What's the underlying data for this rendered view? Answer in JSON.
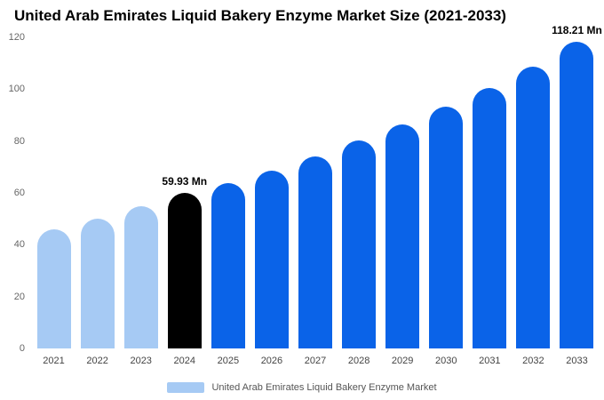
{
  "title": "United Arab Emirates Liquid Bakery Enzyme Market Size (2021-2033)",
  "legend": {
    "label": "United Arab Emirates Liquid Bakery Enzyme Market",
    "swatch_color": "#A6CAF4"
  },
  "colors": {
    "historical": "#A6CAF4",
    "base_year": "#000000",
    "forecast": "#0A63E8"
  },
  "chart_data": {
    "type": "bar",
    "title": "United Arab Emirates Liquid Bakery Enzyme Market Size (2021-2033)",
    "xlabel": "",
    "ylabel": "",
    "ylim": [
      0,
      120
    ],
    "yticks": [
      0,
      20,
      40,
      60,
      80,
      100,
      120
    ],
    "grid": false,
    "legend_position": "bottom",
    "unit": "Mn",
    "categories": [
      "2021",
      "2022",
      "2023",
      "2024",
      "2025",
      "2026",
      "2027",
      "2028",
      "2029",
      "2030",
      "2031",
      "2032",
      "2033"
    ],
    "bars": [
      {
        "year": "2021",
        "value": 46.0,
        "color": "historical",
        "label": ""
      },
      {
        "year": "2022",
        "value": 50.2,
        "color": "historical",
        "label": ""
      },
      {
        "year": "2023",
        "value": 54.7,
        "color": "historical",
        "label": ""
      },
      {
        "year": "2024",
        "value": 59.93,
        "color": "base_year",
        "label": "59.93 Mn"
      },
      {
        "year": "2025",
        "value": 63.8,
        "color": "forecast",
        "label": ""
      },
      {
        "year": "2026",
        "value": 68.6,
        "color": "forecast",
        "label": ""
      },
      {
        "year": "2027",
        "value": 74.0,
        "color": "forecast",
        "label": ""
      },
      {
        "year": "2028",
        "value": 80.2,
        "color": "forecast",
        "label": ""
      },
      {
        "year": "2029",
        "value": 86.3,
        "color": "forecast",
        "label": ""
      },
      {
        "year": "2030",
        "value": 93.2,
        "color": "forecast",
        "label": ""
      },
      {
        "year": "2031",
        "value": 100.5,
        "color": "forecast",
        "label": ""
      },
      {
        "year": "2032",
        "value": 108.6,
        "color": "forecast",
        "label": ""
      },
      {
        "year": "2033",
        "value": 118.21,
        "color": "forecast",
        "label": "118.21 Mn"
      }
    ]
  }
}
